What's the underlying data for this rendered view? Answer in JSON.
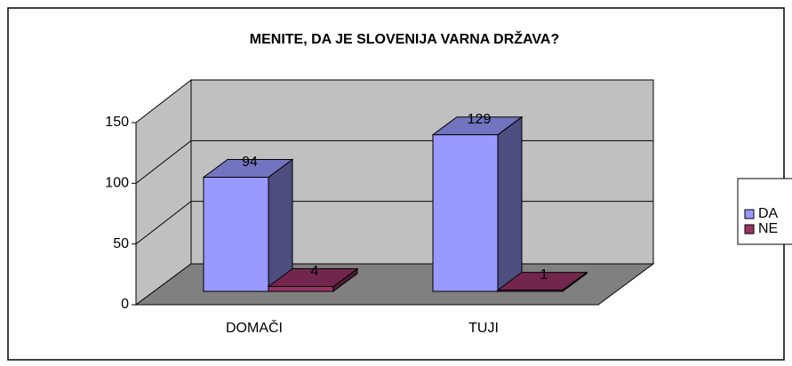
{
  "chart_data": {
    "type": "bar3d",
    "title": "MENITE, DA JE SLOVENIJA VARNA DRŽAVA?",
    "categories": [
      "DOMAČI",
      "TUJI"
    ],
    "series": [
      {
        "name": "DA",
        "color": "#9999ff",
        "values": [
          94,
          129
        ]
      },
      {
        "name": "NE",
        "color": "#993366",
        "values": [
          4,
          1
        ]
      }
    ],
    "ylim": [
      0,
      150
    ],
    "yticks": [
      0,
      50,
      100,
      150
    ],
    "grid": true,
    "legend": "right"
  }
}
